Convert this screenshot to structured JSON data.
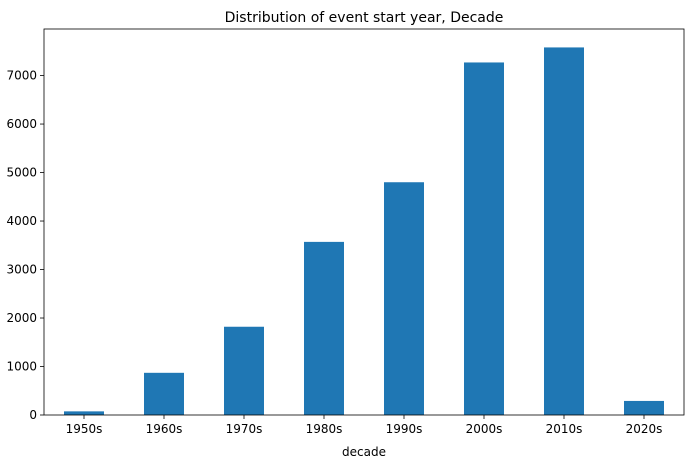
{
  "chart_data": {
    "type": "bar",
    "title": "Distribution of event start year, Decade",
    "xlabel": "decade",
    "ylabel": "",
    "categories": [
      "1950s",
      "1960s",
      "1970s",
      "1980s",
      "1990s",
      "2000s",
      "2010s",
      "2020s"
    ],
    "values": [
      75,
      870,
      1820,
      3570,
      4800,
      7270,
      7580,
      290
    ],
    "ylim": [
      0,
      7960
    ],
    "yticks": [
      0,
      1000,
      2000,
      3000,
      4000,
      5000,
      6000,
      7000
    ],
    "bar_color": "#1f77b4",
    "grid": false,
    "legend": "none"
  }
}
